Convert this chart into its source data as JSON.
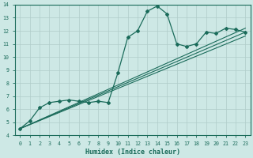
{
  "xlabel": "Humidex (Indice chaleur)",
  "xlim": [
    -0.5,
    23.5
  ],
  "ylim": [
    4,
    14
  ],
  "xticks": [
    0,
    1,
    2,
    3,
    4,
    5,
    6,
    7,
    8,
    9,
    10,
    11,
    12,
    13,
    14,
    15,
    16,
    17,
    18,
    19,
    20,
    21,
    22,
    23
  ],
  "yticks": [
    4,
    5,
    6,
    7,
    8,
    9,
    10,
    11,
    12,
    13,
    14
  ],
  "background_color": "#cde8e5",
  "line_color": "#1a6b5a",
  "grid_color": "#b0ccc9",
  "main_line": {
    "x": [
      0,
      1,
      2,
      3,
      4,
      5,
      6,
      7,
      8,
      9,
      10,
      11,
      12,
      13,
      14,
      15,
      16,
      17,
      18,
      19,
      20,
      21,
      22,
      23
    ],
    "y": [
      4.5,
      5.1,
      6.1,
      6.5,
      6.6,
      6.7,
      6.6,
      6.5,
      6.6,
      6.5,
      8.8,
      11.5,
      12.0,
      13.5,
      13.9,
      13.3,
      11.0,
      10.8,
      11.0,
      11.9,
      11.8,
      12.2,
      12.1,
      11.9
    ]
  },
  "trend_lines": [
    {
      "x0": 0,
      "y0": 4.5,
      "x1": 23,
      "y1": 12.2
    },
    {
      "x0": 0,
      "y0": 4.5,
      "x1": 23,
      "y1": 11.9
    },
    {
      "x0": 0,
      "y0": 4.5,
      "x1": 23,
      "y1": 11.6
    }
  ],
  "marker": "D",
  "markersize": 2.0,
  "linewidth": 0.9,
  "trend_linewidth": 0.8,
  "tick_fontsize": 4.8,
  "xlabel_fontsize": 6.0
}
